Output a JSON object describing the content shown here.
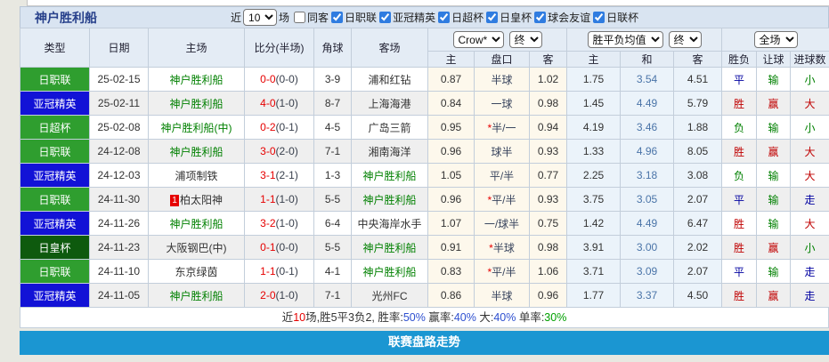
{
  "colors": {
    "badge_green": "#2f9e2f",
    "badge_blue": "#1212d6",
    "badge_darkgreen": "#0e5a0e",
    "team_highlight_green": "#008000",
    "score_red": "#e60000",
    "result_red": "#c00000",
    "result_blue": "#0000a0",
    "result_green": "#008000",
    "footer_bar_blue": "#1b96d2"
  },
  "team_header": {
    "title": "神户胜利船",
    "recent_label": "近",
    "recent_value": "10",
    "recent_suffix": "场",
    "filters": [
      {
        "label": "同客",
        "checked": false
      },
      {
        "label": "日职联",
        "checked": true
      },
      {
        "label": "亚冠精英",
        "checked": true
      },
      {
        "label": "日超杯",
        "checked": true
      },
      {
        "label": "日皇杯",
        "checked": true
      },
      {
        "label": "球会友谊",
        "checked": true
      },
      {
        "label": "日联杯",
        "checked": true
      }
    ]
  },
  "table": {
    "headers": {
      "type": "类型",
      "date": "日期",
      "home": "主场",
      "score": "比分(半场)",
      "corner": "角球",
      "away": "客场",
      "sub": [
        "主",
        "盘口",
        "客",
        "主",
        "和",
        "客",
        "胜负",
        "让球",
        "进球数"
      ]
    },
    "selects": {
      "company": "Crow*",
      "company_time": "终",
      "avg": "胜平负均值",
      "avg_time": "终",
      "scope": "全场"
    },
    "rows": [
      {
        "type": "日职联",
        "type_color": "green",
        "date": "25-02-15",
        "home": "神户胜利船",
        "home_green": true,
        "home_badge": "",
        "score_ft": "0-0",
        "score_ht": "(0-0)",
        "corner": "3-9",
        "away": "浦和红钻",
        "away_green": false,
        "crow_home": "0.87",
        "pan": "半球",
        "pan_star": false,
        "crow_away": "1.02",
        "avg_home": "1.75",
        "avg_draw": "3.54",
        "avg_away": "4.51",
        "results": [
          [
            "平",
            "blue"
          ],
          [
            "输",
            "green"
          ],
          [
            "小",
            "green"
          ]
        ]
      },
      {
        "type": "亚冠精英",
        "type_color": "blue",
        "date": "25-02-11",
        "home": "神户胜利船",
        "home_green": true,
        "home_badge": "",
        "score_ft": "4-0",
        "score_ht": "(1-0)",
        "corner": "8-7",
        "away": "上海海港",
        "away_green": false,
        "crow_home": "0.84",
        "pan": "一球",
        "pan_star": false,
        "crow_away": "0.98",
        "avg_home": "1.45",
        "avg_draw": "4.49",
        "avg_away": "5.79",
        "results": [
          [
            "胜",
            "red"
          ],
          [
            "赢",
            "red"
          ],
          [
            "大",
            "red"
          ]
        ]
      },
      {
        "type": "日超杯",
        "type_color": "green",
        "date": "25-02-08",
        "home": "神户胜利船(中)",
        "home_green": true,
        "home_badge": "",
        "score_ft": "0-2",
        "score_ht": "(0-1)",
        "corner": "4-5",
        "away": "广岛三箭",
        "away_green": false,
        "crow_home": "0.95",
        "pan": "半/一",
        "pan_star": true,
        "crow_away": "0.94",
        "avg_home": "4.19",
        "avg_draw": "3.46",
        "avg_away": "1.88",
        "results": [
          [
            "负",
            "green"
          ],
          [
            "输",
            "green"
          ],
          [
            "小",
            "green"
          ]
        ]
      },
      {
        "type": "日职联",
        "type_color": "green",
        "date": "24-12-08",
        "home": "神户胜利船",
        "home_green": true,
        "home_badge": "",
        "score_ft": "3-0",
        "score_ht": "(2-0)",
        "corner": "7-1",
        "away": "湘南海洋",
        "away_green": false,
        "crow_home": "0.96",
        "pan": "球半",
        "pan_star": false,
        "crow_away": "0.93",
        "avg_home": "1.33",
        "avg_draw": "4.96",
        "avg_away": "8.05",
        "results": [
          [
            "胜",
            "red"
          ],
          [
            "赢",
            "red"
          ],
          [
            "大",
            "red"
          ]
        ]
      },
      {
        "type": "亚冠精英",
        "type_color": "blue",
        "date": "24-12-03",
        "home": "浦项制铁",
        "home_green": false,
        "home_badge": "",
        "score_ft": "3-1",
        "score_ht": "(2-1)",
        "corner": "1-3",
        "away": "神户胜利船",
        "away_green": true,
        "crow_home": "1.05",
        "pan": "平/半",
        "pan_star": false,
        "crow_away": "0.77",
        "avg_home": "2.25",
        "avg_draw": "3.18",
        "avg_away": "3.08",
        "results": [
          [
            "负",
            "green"
          ],
          [
            "输",
            "green"
          ],
          [
            "大",
            "red"
          ]
        ]
      },
      {
        "type": "日职联",
        "type_color": "green",
        "date": "24-11-30",
        "home": "柏太阳神",
        "home_green": false,
        "home_badge": "1",
        "score_ft": "1-1",
        "score_ht": "(1-0)",
        "corner": "5-5",
        "away": "神户胜利船",
        "away_green": true,
        "crow_home": "0.96",
        "pan": "平/半",
        "pan_star": true,
        "crow_away": "0.93",
        "avg_home": "3.75",
        "avg_draw": "3.05",
        "avg_away": "2.07",
        "results": [
          [
            "平",
            "blue"
          ],
          [
            "输",
            "green"
          ],
          [
            "走",
            "blue"
          ]
        ]
      },
      {
        "type": "亚冠精英",
        "type_color": "blue",
        "date": "24-11-26",
        "home": "神户胜利船",
        "home_green": true,
        "home_badge": "",
        "score_ft": "3-2",
        "score_ht": "(1-0)",
        "corner": "6-4",
        "away": "中央海岸水手",
        "away_green": false,
        "crow_home": "1.07",
        "pan": "一/球半",
        "pan_star": false,
        "crow_away": "0.75",
        "avg_home": "1.42",
        "avg_draw": "4.49",
        "avg_away": "6.47",
        "results": [
          [
            "胜",
            "red"
          ],
          [
            "输",
            "green"
          ],
          [
            "大",
            "red"
          ]
        ]
      },
      {
        "type": "日皇杯",
        "type_color": "darkgreen",
        "date": "24-11-23",
        "home": "大阪钢巴(中)",
        "home_green": false,
        "home_badge": "",
        "score_ft": "0-1",
        "score_ht": "(0-0)",
        "corner": "5-5",
        "away": "神户胜利船",
        "away_green": true,
        "crow_home": "0.91",
        "pan": "半球",
        "pan_star": true,
        "crow_away": "0.98",
        "avg_home": "3.91",
        "avg_draw": "3.00",
        "avg_away": "2.02",
        "results": [
          [
            "胜",
            "red"
          ],
          [
            "赢",
            "red"
          ],
          [
            "小",
            "green"
          ]
        ]
      },
      {
        "type": "日职联",
        "type_color": "green",
        "date": "24-11-10",
        "home": "东京绿茵",
        "home_green": false,
        "home_badge": "",
        "score_ft": "1-1",
        "score_ht": "(0-1)",
        "corner": "4-1",
        "away": "神户胜利船",
        "away_green": true,
        "crow_home": "0.83",
        "pan": "平/半",
        "pan_star": true,
        "crow_away": "1.06",
        "avg_home": "3.71",
        "avg_draw": "3.09",
        "avg_away": "2.07",
        "results": [
          [
            "平",
            "blue"
          ],
          [
            "输",
            "green"
          ],
          [
            "走",
            "blue"
          ]
        ]
      },
      {
        "type": "亚冠精英",
        "type_color": "blue",
        "date": "24-11-05",
        "home": "神户胜利船",
        "home_green": true,
        "home_badge": "",
        "score_ft": "2-0",
        "score_ht": "(1-0)",
        "corner": "7-1",
        "away": "光州FC",
        "away_green": false,
        "crow_home": "0.86",
        "pan": "半球",
        "pan_star": false,
        "crow_away": "0.96",
        "avg_home": "1.77",
        "avg_draw": "3.37",
        "avg_away": "4.50",
        "results": [
          [
            "胜",
            "red"
          ],
          [
            "赢",
            "red"
          ],
          [
            "走",
            "blue"
          ]
        ]
      }
    ]
  },
  "summary": {
    "segments": [
      {
        "text": "近",
        "color": "dark"
      },
      {
        "text": "10",
        "color": "red"
      },
      {
        "text": "场,胜5平3负2, 胜率:",
        "color": "dark"
      },
      {
        "text": "50%",
        "color": "blue"
      },
      {
        "text": " 赢率:",
        "color": "dark"
      },
      {
        "text": "40%",
        "color": "blue"
      },
      {
        "text": " 大:",
        "color": "dark"
      },
      {
        "text": "40%",
        "color": "blue"
      },
      {
        "text": " 单率:",
        "color": "dark"
      },
      {
        "text": "30%",
        "color": "green"
      }
    ]
  },
  "footer_bar": {
    "label": "联赛盘路走势"
  }
}
